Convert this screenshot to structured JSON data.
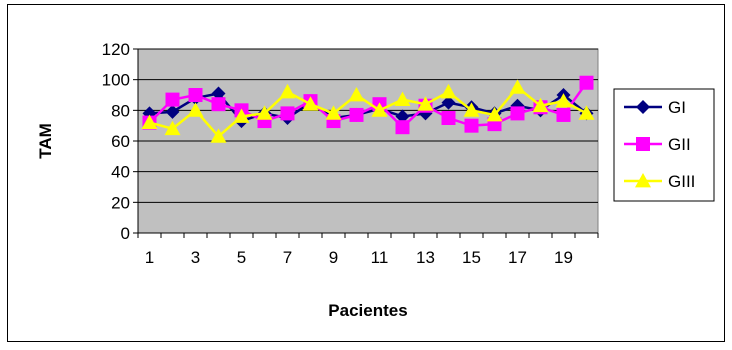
{
  "chart_data": {
    "type": "line",
    "title": "",
    "xlabel": "Pacientes",
    "ylabel": "TAM",
    "ylim": [
      0,
      120
    ],
    "yticks": [
      0,
      20,
      40,
      60,
      80,
      100,
      120
    ],
    "x": [
      1,
      2,
      3,
      4,
      5,
      6,
      7,
      8,
      9,
      10,
      11,
      12,
      13,
      14,
      15,
      16,
      17,
      18,
      19,
      20
    ],
    "xtick_labels": [
      "1",
      "3",
      "5",
      "7",
      "9",
      "11",
      "13",
      "15",
      "17",
      "19"
    ],
    "grid": true,
    "plot_background": "#c0c0c0",
    "legend_position": "right",
    "series": [
      {
        "name": "GI",
        "marker": "diamond",
        "color": "#000080",
        "values": [
          78,
          79,
          88,
          91,
          73,
          78,
          75,
          85,
          75,
          77,
          81,
          76,
          78,
          85,
          82,
          78,
          83,
          80,
          90,
          78
        ]
      },
      {
        "name": "GII",
        "marker": "square",
        "color": "#ff00ff",
        "values": [
          72,
          87,
          90,
          84,
          80,
          73,
          78,
          86,
          73,
          77,
          84,
          69,
          83,
          75,
          70,
          71,
          78,
          82,
          77,
          98
        ]
      },
      {
        "name": "GIII",
        "marker": "triangle",
        "color": "#ffff00",
        "values": [
          72,
          68,
          80,
          63,
          76,
          78,
          92,
          84,
          78,
          90,
          80,
          87,
          84,
          92,
          80,
          77,
          95,
          83,
          86,
          78
        ]
      }
    ]
  }
}
